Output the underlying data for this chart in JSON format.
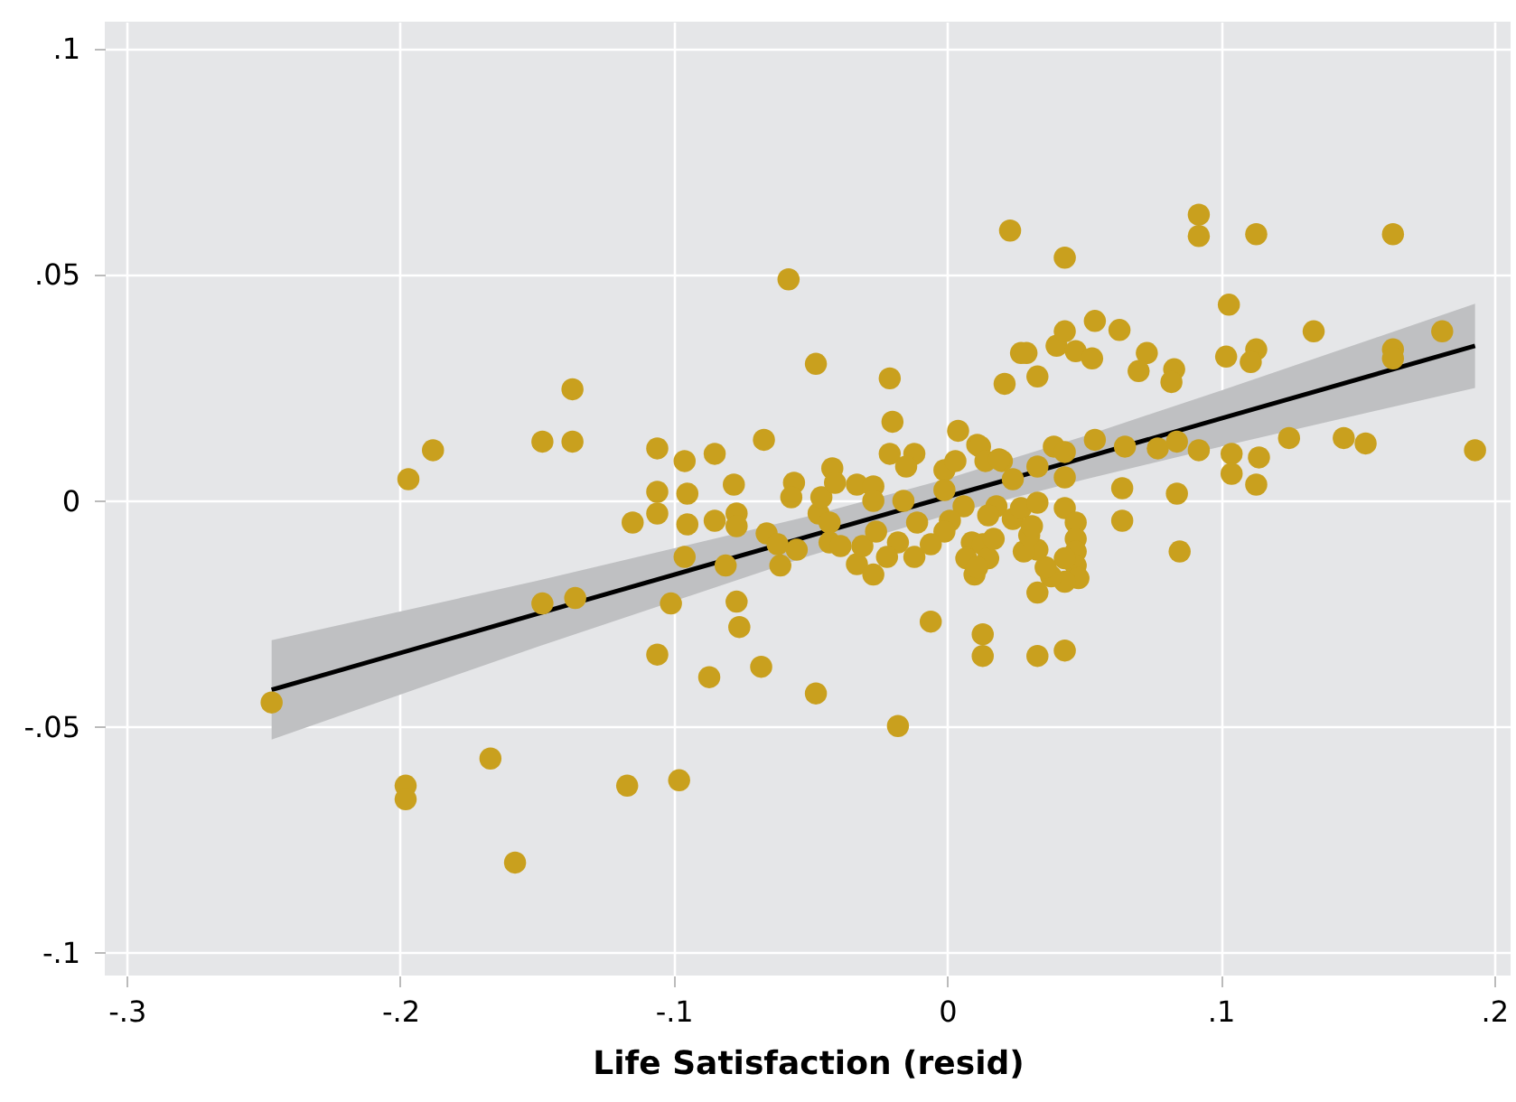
{
  "chart_data": {
    "type": "scatter",
    "xlabel": "Life Satisfaction (resid)",
    "xlim": [
      -0.308,
      0.206
    ],
    "ylim": [
      -0.105,
      0.106
    ],
    "xticks": [
      {
        "value": -0.3,
        "label": "-.3"
      },
      {
        "value": -0.2,
        "label": "-.2"
      },
      {
        "value": -0.1,
        "label": "-.1"
      },
      0,
      {
        "value": 0.1,
        "label": ".1"
      },
      {
        "value": 0.2,
        "label": ".2"
      }
    ],
    "yticks": [
      {
        "value": -0.1,
        "label": "-.1"
      },
      {
        "value": -0.05,
        "label": "-.05"
      },
      0,
      {
        "value": 0.05,
        "label": ".05"
      },
      {
        "value": 0.1,
        "label": ".1"
      }
    ],
    "grid": true,
    "series": [
      {
        "type": "line",
        "color": "#000000",
        "line_style": "solid",
        "x": [
          -0.247,
          -0.15,
          -0.05,
          0,
          0.05,
          0.1,
          0.193
        ],
        "values": [
          -0.0418,
          -0.025,
          -0.0077,
          0.0009,
          0.0095,
          0.0182,
          0.0343
        ],
        "lower": [
          -0.0528,
          -0.0323,
          -0.0121,
          -0.0031,
          0.0047,
          0.012,
          0.025
        ],
        "upper": [
          -0.0308,
          -0.0177,
          -0.0033,
          0.0049,
          0.0143,
          0.0244,
          0.0436
        ]
      },
      {
        "color": "#c9a01e",
        "marker": "circle",
        "x": [
          -0.247,
          -0.197,
          -0.188,
          -0.198,
          -0.198,
          -0.167,
          -0.158,
          -0.148,
          -0.137,
          -0.137,
          -0.148,
          -0.136,
          -0.115,
          -0.106,
          -0.106,
          -0.106,
          -0.106,
          -0.117,
          -0.101,
          -0.098,
          -0.096,
          -0.095,
          -0.095,
          -0.096,
          -0.085,
          -0.078,
          -0.077,
          -0.077,
          -0.085,
          -0.081,
          -0.077,
          -0.076,
          -0.087,
          -0.068,
          -0.067,
          -0.058,
          -0.048,
          -0.048,
          -0.018,
          -0.056,
          -0.057,
          -0.066,
          -0.062,
          -0.061,
          -0.055,
          -0.047,
          -0.046,
          -0.042,
          -0.041,
          -0.043,
          -0.043,
          -0.039,
          -0.033,
          -0.031,
          -0.033,
          -0.027,
          -0.027,
          -0.027,
          -0.026,
          -0.021,
          -0.02,
          -0.021,
          -0.012,
          -0.015,
          -0.016,
          -0.018,
          -0.022,
          -0.012,
          -0.011,
          -0.006,
          -0.001,
          0.003,
          0.004,
          0.011,
          0.02,
          -0.001,
          0.006,
          0.001,
          -0.001,
          -0.006,
          0.009,
          0.007,
          0.013,
          0.01,
          0.015,
          0.013,
          0.013,
          0.023,
          0.021,
          0.018,
          0.017,
          0.027,
          0.043,
          0.092,
          0.092,
          0.113,
          0.029,
          0.033,
          0.04,
          0.043,
          0.047,
          0.054,
          0.053,
          0.063,
          0.073,
          0.07,
          0.083,
          0.082,
          0.103,
          0.102,
          0.113,
          0.111,
          0.134,
          0.163,
          0.163,
          0.163,
          0.181,
          0.193,
          0.125,
          0.145,
          0.153,
          0.104,
          0.104,
          0.114,
          0.113,
          0.054,
          0.065,
          0.077,
          0.084,
          0.092,
          0.039,
          0.043,
          0.033,
          0.024,
          0.043,
          0.012,
          0.014,
          0.019,
          0.064,
          0.064,
          0.084,
          0.085,
          0.015,
          0.024,
          0.027,
          0.033,
          0.043,
          0.047,
          0.047,
          0.047,
          0.047,
          0.048,
          0.043,
          0.043,
          0.038,
          0.036,
          0.033,
          0.028,
          0.03,
          0.031,
          0.011,
          0.033,
          0.033,
          0.043
        ],
        "values": [
          -0.0446,
          0.0048,
          0.0112,
          -0.063,
          -0.066,
          -0.057,
          -0.08,
          0.0131,
          0.0247,
          0.0131,
          -0.0227,
          -0.0215,
          -0.0048,
          0.0116,
          0.002,
          -0.0028,
          -0.034,
          -0.063,
          -0.0227,
          -0.0618,
          0.0088,
          0.0016,
          -0.0052,
          -0.0124,
          0.0104,
          0.0036,
          -0.0028,
          -0.0056,
          -0.0044,
          -0.0143,
          -0.0223,
          -0.0279,
          -0.039,
          -0.0367,
          0.0135,
          0.049,
          0.0303,
          -0.0426,
          -0.0498,
          0.004,
          0.0008,
          -0.0072,
          -0.0096,
          -0.0143,
          -0.0108,
          -0.0028,
          0.0008,
          0.0072,
          0.004,
          -0.0048,
          -0.0092,
          -0.01,
          -0.014,
          -0.01,
          0.0036,
          0.0032,
          0,
          -0.0163,
          -0.0068,
          0.0271,
          0.0175,
          0.0104,
          0.0104,
          0.0076,
          0,
          -0.0092,
          -0.0124,
          -0.0124,
          -0.0048,
          -0.0267,
          0.0068,
          0.0088,
          0.0155,
          0.0124,
          0.0088,
          0.0024,
          -0.0012,
          -0.0044,
          -0.0068,
          -0.0096,
          -0.0092,
          -0.0127,
          -0.0096,
          -0.0163,
          -0.0127,
          -0.0295,
          -0.0343,
          0.0598,
          0.0259,
          -0.0012,
          -0.0084,
          0.0327,
          0.0538,
          0.0633,
          0.0586,
          0.059,
          0.0327,
          0.0275,
          0.0343,
          0.0375,
          0.0331,
          0.0398,
          0.0315,
          0.0378,
          0.0327,
          0.0287,
          0.0291,
          0.0263,
          0.0434,
          0.0319,
          0.0335,
          0.0307,
          0.0375,
          0.0335,
          0.0315,
          0.059,
          0.0375,
          0.0112,
          0.0139,
          0.0139,
          0.0127,
          0.0104,
          0.006,
          0.0096,
          0.0036,
          0.0135,
          0.012,
          0.0116,
          0.0131,
          0.0112,
          0.012,
          0.0108,
          0.0076,
          0.0048,
          0.0052,
          0.012,
          0.0088,
          0.0092,
          0.0028,
          -0.0044,
          0.0016,
          -0.0112,
          -0.0032,
          -0.004,
          -0.0016,
          -0.0004,
          -0.0016,
          -0.0048,
          -0.0084,
          -0.0112,
          -0.0143,
          -0.0171,
          -0.0127,
          -0.0179,
          -0.0167,
          -0.0147,
          -0.0108,
          -0.0112,
          -0.0076,
          -0.0056,
          -0.0147,
          -0.0203,
          -0.0343,
          -0.0331
        ]
      }
    ]
  }
}
